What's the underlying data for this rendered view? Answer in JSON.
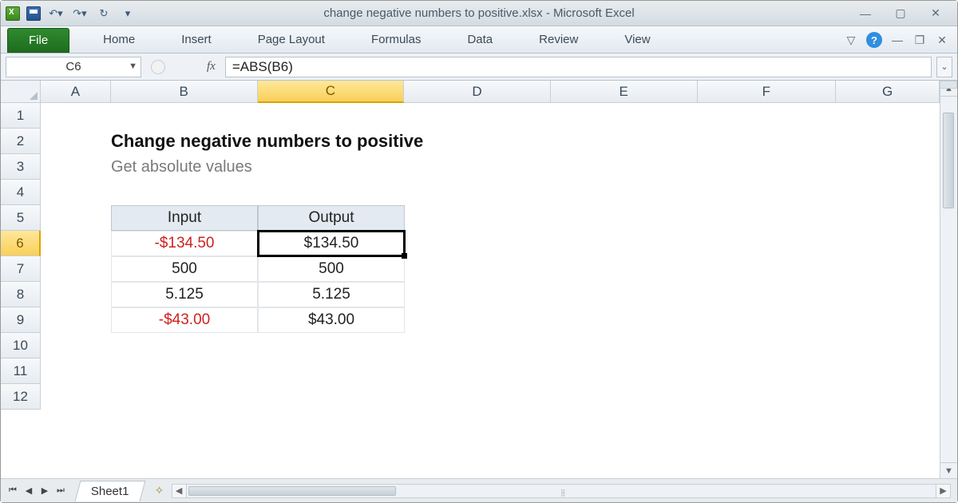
{
  "window": {
    "title": "change negative numbers to positive.xlsx  -  Microsoft Excel"
  },
  "ribbon": {
    "file": "File",
    "tabs": [
      "Home",
      "Insert",
      "Page Layout",
      "Formulas",
      "Data",
      "Review",
      "View"
    ]
  },
  "formula_bar": {
    "name_box": "C6",
    "fx_label": "fx",
    "formula": "=ABS(B6)"
  },
  "columns": {
    "labels": [
      "A",
      "B",
      "C",
      "D",
      "E",
      "F",
      "G"
    ],
    "widths": [
      88,
      184,
      184,
      184,
      184,
      174,
      130
    ],
    "active_index": 2
  },
  "rows": {
    "count": 12,
    "height": 32,
    "active_index": 5
  },
  "content": {
    "title": "Change negative numbers to positive",
    "subtitle": "Get absolute values",
    "table": {
      "header_bg": "#e3eaf1",
      "border_color": "#bfc8d0",
      "headers": [
        "Input",
        "Output"
      ],
      "rows": [
        {
          "input": "-$134.50",
          "output": "$134.50",
          "input_negative": true
        },
        {
          "input": "500",
          "output": "500",
          "input_negative": false
        },
        {
          "input": "5.125",
          "output": "5.125",
          "input_negative": false
        },
        {
          "input": "-$43.00",
          "output": "$43.00",
          "input_negative": true
        }
      ],
      "selected_cell": {
        "col": "C",
        "row": 6
      }
    }
  },
  "sheets": {
    "active": "Sheet1"
  },
  "colors": {
    "negative_text": "#d02020",
    "col_active_bg": "#f9cf5a",
    "row_active_bg": "#f9cf5a",
    "selection_border": "#000000"
  }
}
